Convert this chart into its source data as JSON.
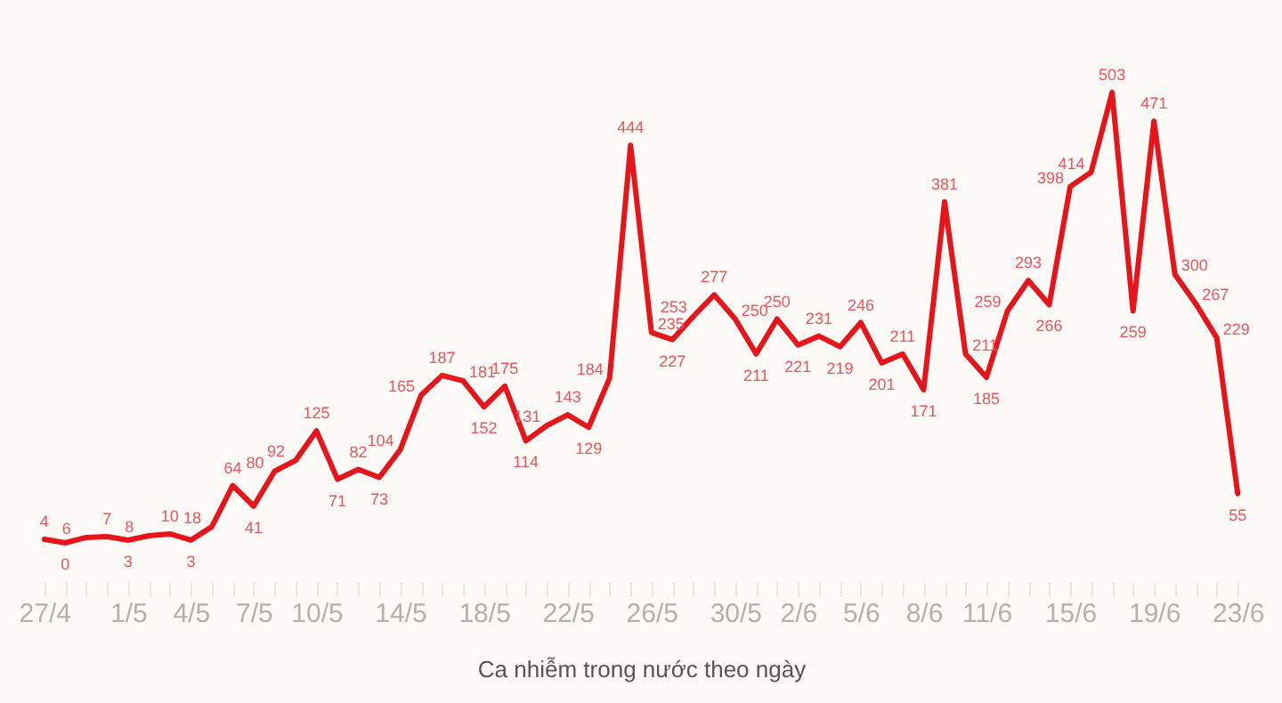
{
  "chart_data": {
    "type": "line",
    "xlabel": "Ca nhiễm trong nước theo ngày",
    "categories": [
      "27/4",
      null,
      null,
      null,
      "1/5",
      null,
      null,
      "4/5",
      null,
      null,
      "7/5",
      null,
      null,
      "10/5",
      null,
      null,
      null,
      "14/5",
      null,
      null,
      null,
      "18/5",
      null,
      null,
      null,
      "22/5",
      null,
      null,
      null,
      "26/5",
      null,
      null,
      null,
      "30/5",
      null,
      null,
      "2/6",
      null,
      null,
      "5/6",
      null,
      null,
      "8/6",
      null,
      null,
      "11/6",
      null,
      null,
      null,
      "15/6",
      null,
      null,
      null,
      "19/6",
      null,
      null,
      null,
      "23/6"
    ],
    "series": [
      {
        "color": "#e8141a",
        "values": [
          4,
          0,
          6,
          7,
          3,
          8,
          10,
          3,
          18,
          64,
          41,
          80,
          92,
          125,
          71,
          82,
          73,
          104,
          165,
          187,
          181,
          152,
          175,
          114,
          131,
          143,
          129,
          184,
          444,
          235,
          227,
          253,
          277,
          250,
          211,
          250,
          221,
          231,
          219,
          246,
          201,
          211,
          171,
          381,
          211,
          185,
          259,
          293,
          266,
          398,
          414,
          503,
          259,
          471,
          300,
          267,
          229,
          55
        ]
      }
    ],
    "data_labels": true,
    "line_style": "solid"
  }
}
